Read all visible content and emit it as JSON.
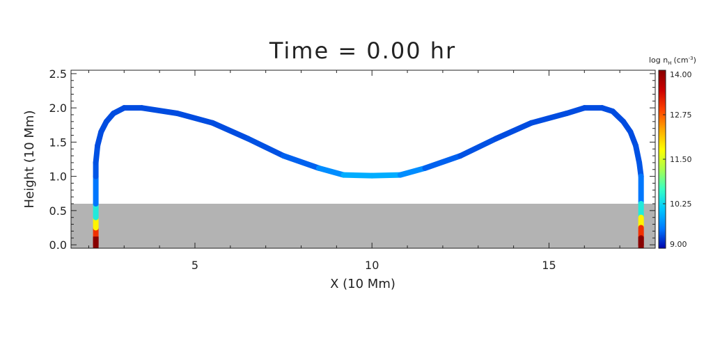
{
  "chart_data": {
    "type": "line",
    "title": "Time = 0.00 hr",
    "xlabel": "X (10 Mm)",
    "ylabel": "Height (10 Mm)",
    "xlim": [
      1.5,
      18.0
    ],
    "ylim": [
      -0.05,
      2.55
    ],
    "x_ticks": [
      5,
      10,
      15
    ],
    "x_tick_labels": [
      "5",
      "10",
      "15"
    ],
    "y_ticks": [
      0.0,
      0.5,
      1.0,
      1.5,
      2.0,
      2.5
    ],
    "y_tick_labels": [
      "0.0",
      "0.5",
      "1.0",
      "1.5",
      "2.0",
      "2.5"
    ],
    "chromosphere_band": {
      "y_top": 0.6,
      "color": "#b3b3b3"
    },
    "series": [
      {
        "x": [
          2.2,
          2.2,
          2.2,
          2.2,
          2.2,
          2.2,
          2.2,
          2.25,
          2.35,
          2.5,
          2.7,
          3.0,
          3.5,
          4.5,
          5.5,
          6.5,
          7.5,
          8.5,
          9.2,
          10.0,
          10.8,
          11.5,
          12.5,
          13.5,
          14.5,
          15.5,
          16.0,
          16.5,
          16.8,
          17.1,
          17.3,
          17.45,
          17.55,
          17.6,
          17.6,
          17.6,
          17.6,
          17.6,
          17.6,
          17.6
        ],
        "y": [
          0.0,
          0.1,
          0.25,
          0.4,
          0.6,
          1.0,
          1.2,
          1.45,
          1.65,
          1.8,
          1.92,
          2.0,
          2.0,
          1.92,
          1.78,
          1.55,
          1.3,
          1.12,
          1.02,
          1.01,
          1.02,
          1.12,
          1.3,
          1.55,
          1.78,
          1.92,
          2.0,
          2.0,
          1.95,
          1.8,
          1.65,
          1.45,
          1.2,
          1.0,
          0.6,
          0.4,
          0.25,
          0.1,
          0.0,
          0.0
        ],
        "log_nH": [
          14.0,
          13.6,
          12.5,
          11.2,
          9.7,
          9.4,
          9.4,
          9.35,
          9.35,
          9.35,
          9.35,
          9.35,
          9.35,
          9.35,
          9.35,
          9.35,
          9.4,
          9.5,
          9.9,
          9.95,
          9.9,
          9.5,
          9.4,
          9.35,
          9.35,
          9.35,
          9.35,
          9.35,
          9.35,
          9.35,
          9.35,
          9.35,
          9.4,
          9.4,
          9.7,
          11.2,
          12.5,
          13.6,
          14.0,
          14.0
        ]
      }
    ],
    "colorbar": {
      "label": "log n",
      "label_sub": "H",
      "label_unit": "(cm",
      "label_unit_sup": "-3",
      "label_unit_close": ")",
      "min": 9.0,
      "max": 14.0,
      "ticks": [
        9.0,
        10.25,
        11.5,
        12.75,
        14.0
      ],
      "tick_labels": [
        "9.00",
        "10.25",
        "11.50",
        "12.75",
        "14.00"
      ],
      "colormap": [
        "#0000aa",
        "#0078ff",
        "#00c8ff",
        "#37ffc4",
        "#a8ff4f",
        "#ffff00",
        "#ffaa00",
        "#ff4400",
        "#cc0000",
        "#880000"
      ]
    },
    "grid": false,
    "legend": "none"
  }
}
